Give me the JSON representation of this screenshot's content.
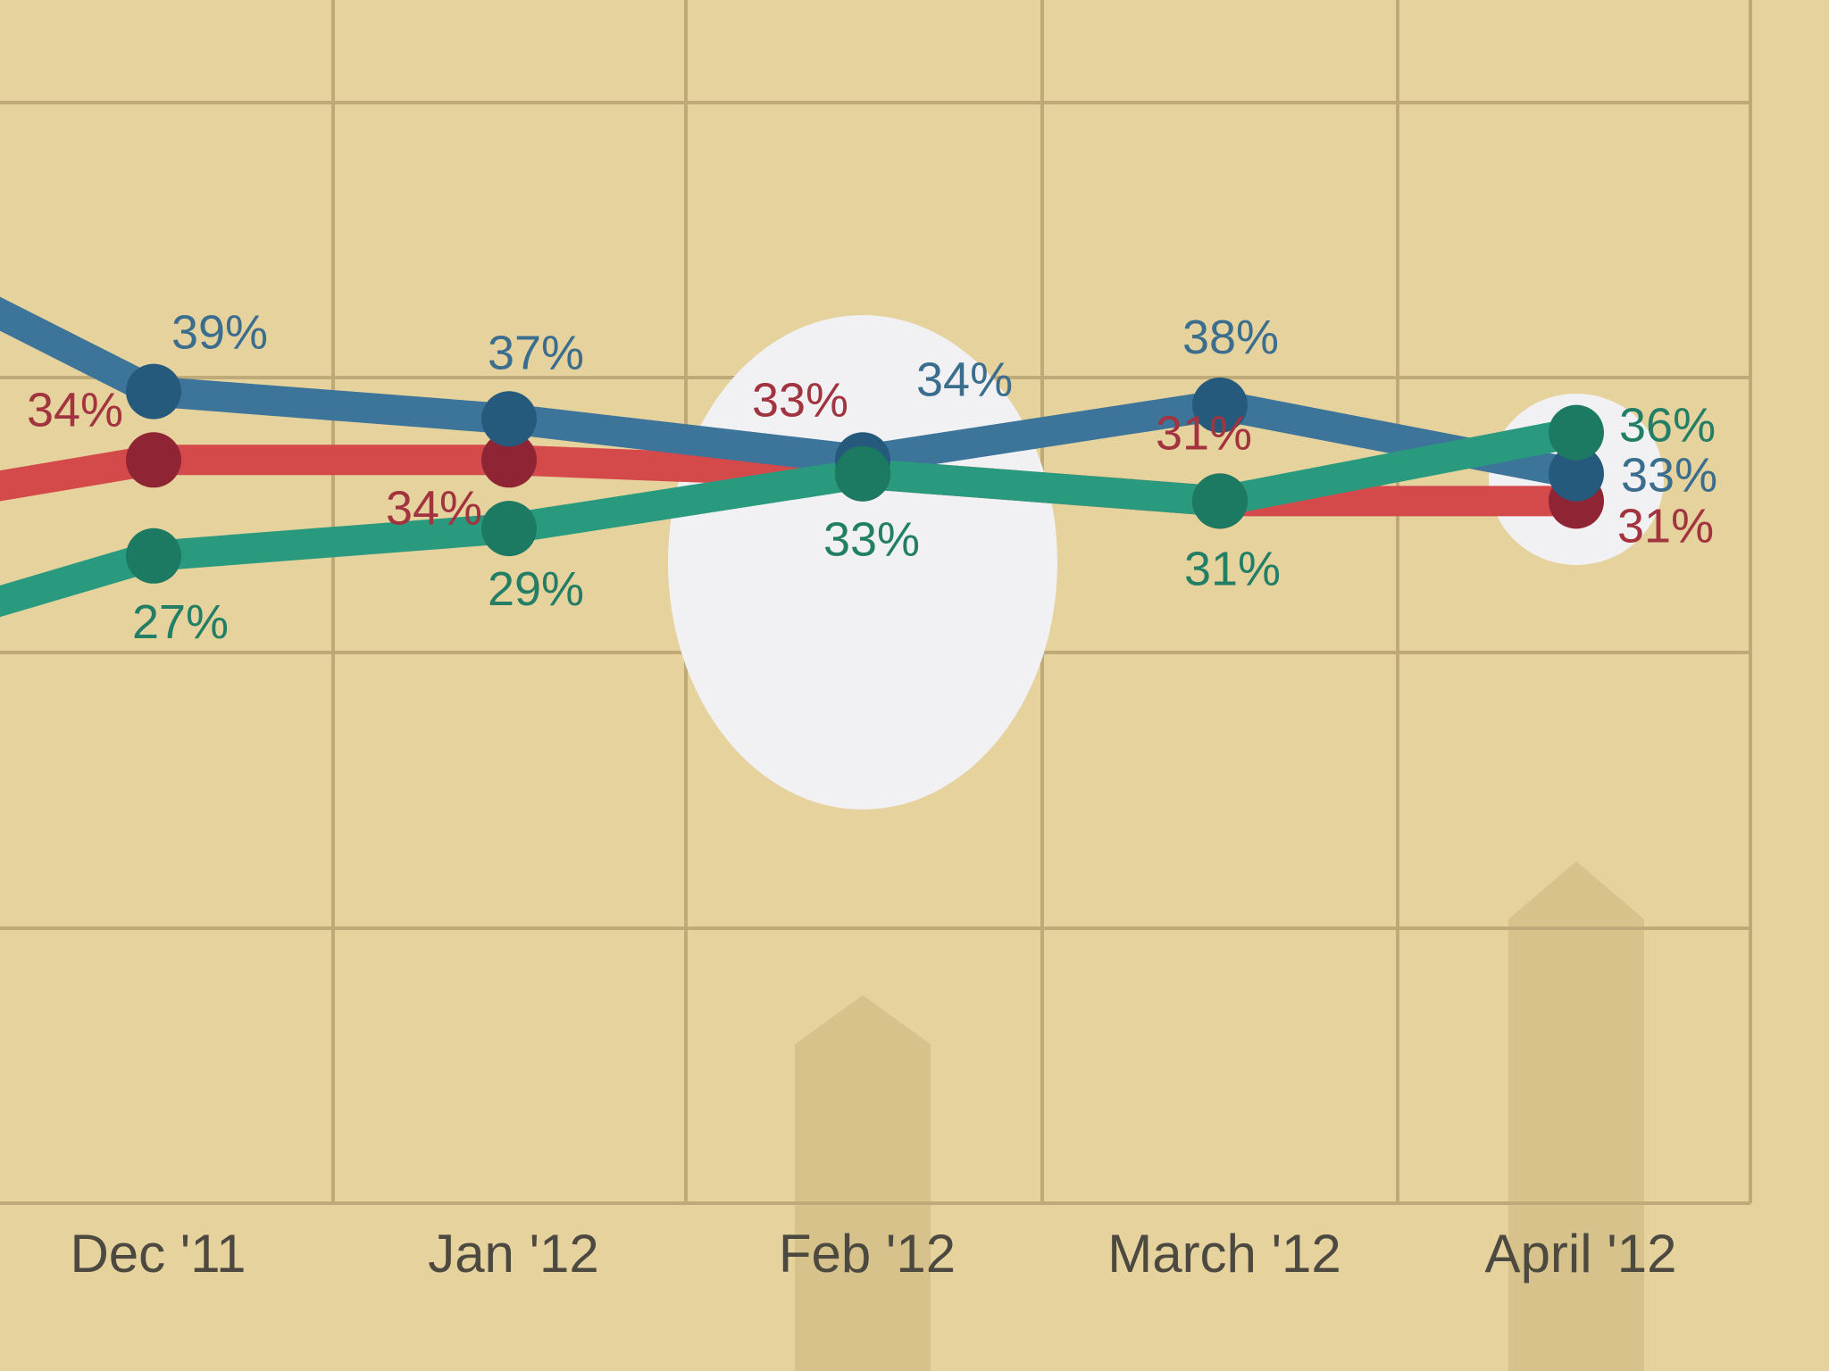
{
  "chart_data": {
    "type": "line",
    "title": "",
    "xlabel": "",
    "ylabel": "",
    "categories": [
      "Dec '11",
      "Jan '12",
      "Feb '12",
      "March '12",
      "April '12"
    ],
    "ylim": [
      15,
      45
    ],
    "grid": true,
    "series": [
      {
        "key": "blue",
        "color": "#3d7499",
        "marker_color": "#265a7c",
        "label_color": "#3b6e8e",
        "values": [
          39,
          37,
          34,
          38,
          33
        ],
        "labels": [
          "39%",
          "37%",
          "34%",
          "38%",
          "33%"
        ]
      },
      {
        "key": "red",
        "color": "#d44a4b",
        "marker_color": "#8f2434",
        "label_color": "#a2343f",
        "values": [
          34,
          34,
          33,
          31,
          31
        ],
        "labels": [
          "34%",
          "34%",
          "33%",
          "31%",
          "31%"
        ]
      },
      {
        "key": "green",
        "color": "#2a9a7e",
        "marker_color": "#1c7a62",
        "label_color": "#237e66",
        "values": [
          27,
          29,
          33,
          31,
          36
        ],
        "labels": [
          "27%",
          "29%",
          "33%",
          "31%",
          "36%"
        ]
      }
    ],
    "highlights": [
      "Feb '12",
      "April '12"
    ]
  }
}
